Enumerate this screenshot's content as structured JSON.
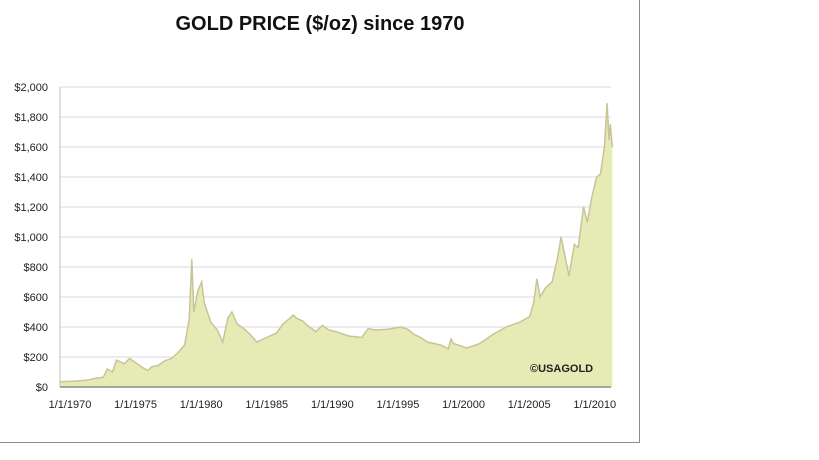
{
  "chart_data": {
    "type": "area",
    "title": "GOLD PRICE ($/oz) since 1970",
    "xlabel": "",
    "ylabel": "",
    "ylim": [
      0,
      2000
    ],
    "xlim": [
      1970,
      2012
    ],
    "grid": true,
    "y_ticks": [
      "$0",
      "$200",
      "$400",
      "$600",
      "$800",
      "$1,000",
      "$1,200",
      "$1,400",
      "$1,600",
      "$1,800",
      "$2,000"
    ],
    "y_tick_values": [
      0,
      200,
      400,
      600,
      800,
      1000,
      1200,
      1400,
      1600,
      1800,
      2000
    ],
    "x_ticks": [
      "1/1/1970",
      "1/1/1975",
      "1/1/1980",
      "1/1/1985",
      "1/1/1990",
      "1/1/1995",
      "1/1/2000",
      "1/1/2005",
      "1/1/2010"
    ],
    "x_tick_values": [
      1970,
      1975,
      1980,
      1985,
      1990,
      1995,
      2000,
      2005,
      2010
    ],
    "annotation": "©USAGOLD",
    "fill_color": "#e6eab5",
    "line_color": "#c9c39a",
    "series": [
      {
        "name": "Gold price",
        "x": [
          1970,
          1971,
          1972,
          1972.8,
          1973.3,
          1973.6,
          1974,
          1974.3,
          1974.9,
          1975.3,
          1975.8,
          1976.3,
          1976.7,
          1977,
          1977.5,
          1978,
          1978.5,
          1979,
          1979.5,
          1979.85,
          1980.05,
          1980.2,
          1980.5,
          1980.8,
          1981,
          1981.5,
          1982,
          1982.4,
          1982.8,
          1983.1,
          1983.5,
          1984,
          1984.5,
          1985,
          1985.5,
          1986,
          1986.5,
          1987,
          1987.8,
          1988,
          1988.5,
          1989,
          1989.5,
          1990,
          1990.5,
          1991,
          1992,
          1993,
          1993.5,
          1994,
          1995,
          1996,
          1996.5,
          1997,
          1997.5,
          1998,
          1999,
          1999.6,
          1999.8,
          2000,
          2001,
          2001.7,
          2002,
          2002.5,
          2003,
          2004,
          2005,
          2005.8,
          2006.1,
          2006.35,
          2006.6,
          2007,
          2007.5,
          2007.9,
          2008.2,
          2008.5,
          2008.8,
          2009.2,
          2009.5,
          2009.9,
          2010.2,
          2010.5,
          2010.9,
          2011.2,
          2011.5,
          2011.7,
          2011.85,
          2011.95,
          2012.1
        ],
        "y": [
          35,
          38,
          45,
          60,
          65,
          120,
          100,
          180,
          155,
          190,
          160,
          130,
          110,
          135,
          145,
          175,
          190,
          230,
          280,
          450,
          850,
          500,
          640,
          700,
          560,
          430,
          380,
          300,
          460,
          500,
          420,
          390,
          350,
          300,
          320,
          340,
          360,
          420,
          480,
          460,
          440,
          400,
          370,
          410,
          380,
          370,
          340,
          330,
          390,
          380,
          385,
          400,
          385,
          350,
          330,
          300,
          280,
          255,
          320,
          290,
          260,
          280,
          290,
          320,
          350,
          400,
          430,
          470,
          560,
          720,
          600,
          660,
          700,
          850,
          1000,
          870,
          740,
          950,
          930,
          1200,
          1100,
          1250,
          1400,
          1420,
          1600,
          1890,
          1650,
          1750,
          1600
        ]
      }
    ]
  }
}
